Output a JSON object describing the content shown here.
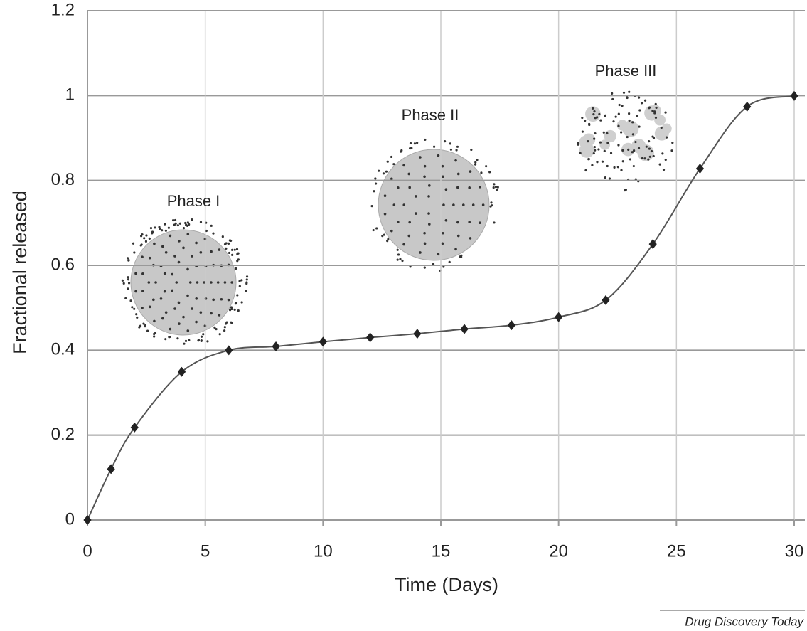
{
  "chart_data": {
    "type": "line",
    "x": [
      0,
      1,
      2,
      4,
      6,
      8,
      10,
      12,
      14,
      16,
      18,
      20,
      22,
      24,
      26,
      28,
      30
    ],
    "values": [
      0,
      0.12,
      0.218,
      0.349,
      0.4,
      0.409,
      0.42,
      0.43,
      0.439,
      0.45,
      0.459,
      0.478,
      0.518,
      0.65,
      0.828,
      0.974,
      0.999
    ],
    "color": "#222222",
    "xlim": [
      0,
      30
    ],
    "xticks": [
      0,
      5,
      10,
      15,
      20,
      25,
      30
    ],
    "ylim": [
      0,
      1.2
    ],
    "yticks": [
      0,
      0.2,
      0.4,
      0.6,
      0.8,
      1,
      1.2
    ],
    "grid": true,
    "xlabel": "Time (Days)",
    "ylabel": "Fractional released",
    "annotations": [
      "Phase I",
      "Phase II",
      "Phase III"
    ],
    "source": "Drug Discovery Today"
  }
}
